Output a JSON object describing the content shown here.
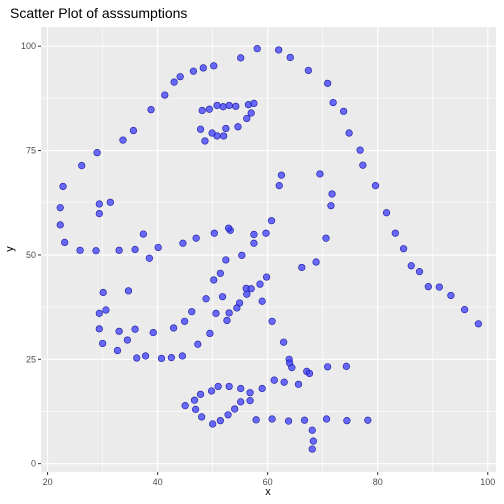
{
  "chart_data": {
    "type": "scatter",
    "title": "Scatter Plot of asssumptions",
    "xlabel": "x",
    "ylabel": "y",
    "xlim": [
      20,
      100
    ],
    "ylim": [
      0,
      100
    ],
    "x_ticks": [
      20,
      40,
      60,
      80,
      100
    ],
    "y_ticks": [
      0,
      25,
      50,
      75,
      100
    ],
    "grid": true,
    "point_color": "#3b3bff",
    "panel_bg": "#ebebeb",
    "points": [
      [
        22.3,
        61.3
      ],
      [
        22.3,
        57.2
      ],
      [
        22.8,
        66.4
      ],
      [
        23.1,
        53.0
      ],
      [
        26.2,
        71.4
      ],
      [
        25.9,
        51.1
      ],
      [
        29.0,
        74.5
      ],
      [
        28.8,
        51.0
      ],
      [
        29.4,
        62.2
      ],
      [
        29.4,
        59.9
      ],
      [
        31.4,
        62.6
      ],
      [
        33.7,
        77.5
      ],
      [
        33.0,
        51.1
      ],
      [
        35.6,
        79.8
      ],
      [
        35.9,
        51.3
      ],
      [
        37.4,
        55.0
      ],
      [
        38.5,
        49.2
      ],
      [
        38.8,
        84.8
      ],
      [
        40.1,
        51.8
      ],
      [
        41.3,
        88.3
      ],
      [
        43.0,
        91.4
      ],
      [
        44.1,
        92.7
      ],
      [
        44.6,
        52.8
      ],
      [
        46.5,
        94.0
      ],
      [
        47.0,
        54.0
      ],
      [
        48.3,
        94.8
      ],
      [
        50.2,
        95.3
      ],
      [
        50.3,
        55.2
      ],
      [
        53.2,
        55.9
      ],
      [
        55.1,
        97.2
      ],
      [
        58.1,
        99.4
      ],
      [
        62.0,
        99.1
      ],
      [
        62.5,
        69.1
      ],
      [
        62.1,
        66.6
      ],
      [
        60.7,
        58.2
      ],
      [
        59.7,
        55.2
      ],
      [
        57.5,
        54.9
      ],
      [
        57.5,
        52.8
      ],
      [
        55.3,
        49.9
      ],
      [
        52.4,
        48.8
      ],
      [
        51.4,
        45.6
      ],
      [
        50.2,
        44.0
      ],
      [
        48.8,
        39.5
      ],
      [
        51.8,
        40.0
      ],
      [
        53.0,
        36.1
      ],
      [
        54.9,
        38.5
      ],
      [
        56.1,
        42.0
      ],
      [
        57.0,
        41.9
      ],
      [
        58.6,
        43.0
      ],
      [
        59.8,
        44.7
      ],
      [
        59.0,
        38.9
      ],
      [
        60.8,
        34.1
      ],
      [
        62.9,
        29.1
      ],
      [
        63.9,
        25.0
      ],
      [
        64.0,
        24.1
      ],
      [
        64.4,
        23.0
      ],
      [
        66.2,
        47.0
      ],
      [
        68.8,
        48.3
      ],
      [
        65.6,
        19.0
      ],
      [
        63.0,
        19.5
      ],
      [
        61.2,
        20.0
      ],
      [
        59.0,
        18.0
      ],
      [
        56.8,
        17.0
      ],
      [
        55.1,
        18.0
      ],
      [
        53.0,
        18.5
      ],
      [
        51.0,
        18.5
      ],
      [
        49.8,
        17.4
      ],
      [
        47.8,
        16.6
      ],
      [
        46.7,
        15.2
      ],
      [
        45.0,
        13.9
      ],
      [
        46.9,
        13.0
      ],
      [
        48.0,
        11.2
      ],
      [
        50.0,
        9.5
      ],
      [
        51.4,
        10.3
      ],
      [
        52.8,
        11.7
      ],
      [
        54.0,
        13.1
      ],
      [
        55.1,
        14.8
      ],
      [
        56.8,
        15.1
      ],
      [
        57.9,
        10.5
      ],
      [
        60.8,
        10.7
      ],
      [
        63.8,
        10.2
      ],
      [
        66.7,
        10.4
      ],
      [
        68.1,
        8.0
      ],
      [
        68.3,
        5.4
      ],
      [
        68.1,
        3.5
      ],
      [
        74.4,
        10.3
      ],
      [
        78.2,
        10.4
      ],
      [
        70.7,
        10.7
      ],
      [
        67.1,
        22.1
      ],
      [
        67.6,
        21.6
      ],
      [
        70.9,
        23.2
      ],
      [
        74.3,
        23.3
      ],
      [
        70.6,
        54.0
      ],
      [
        71.5,
        61.8
      ],
      [
        71.7,
        64.6
      ],
      [
        69.5,
        69.4
      ],
      [
        71.9,
        86.5
      ],
      [
        70.9,
        91.1
      ],
      [
        67.4,
        94.2
      ],
      [
        64.1,
        97.3
      ],
      [
        73.8,
        84.4
      ],
      [
        74.8,
        79.2
      ],
      [
        76.8,
        75.1
      ],
      [
        77.3,
        71.5
      ],
      [
        79.6,
        66.6
      ],
      [
        81.6,
        60.1
      ],
      [
        83.2,
        55.2
      ],
      [
        84.7,
        51.5
      ],
      [
        86.1,
        47.4
      ],
      [
        87.6,
        46.0
      ],
      [
        89.2,
        42.4
      ],
      [
        91.2,
        42.3
      ],
      [
        93.3,
        40.3
      ],
      [
        95.8,
        36.9
      ],
      [
        98.3,
        33.5
      ],
      [
        51.9,
        85.5
      ],
      [
        52.0,
        78.5
      ],
      [
        52.4,
        80.3
      ],
      [
        53.0,
        85.8
      ],
      [
        52.9,
        56.4
      ],
      [
        50.8,
        85.8
      ],
      [
        47.8,
        80.1
      ],
      [
        50.8,
        78.5
      ],
      [
        49.9,
        79.2
      ],
      [
        48.1,
        84.6
      ],
      [
        49.4,
        84.9
      ],
      [
        48.6,
        77.3
      ],
      [
        54.2,
        85.6
      ],
      [
        54.6,
        80.7
      ],
      [
        56.5,
        86.0
      ],
      [
        57.5,
        86.3
      ],
      [
        56.2,
        82.7
      ],
      [
        57.0,
        84.0
      ],
      [
        29.4,
        32.3
      ],
      [
        29.4,
        36.0
      ],
      [
        30.6,
        36.8
      ],
      [
        30.0,
        28.8
      ],
      [
        32.7,
        27.1
      ],
      [
        33.0,
        31.7
      ],
      [
        34.5,
        29.6
      ],
      [
        35.9,
        32.2
      ],
      [
        36.2,
        25.3
      ],
      [
        37.8,
        25.8
      ],
      [
        39.2,
        31.4
      ],
      [
        40.7,
        25.2
      ],
      [
        42.5,
        25.4
      ],
      [
        42.9,
        32.5
      ],
      [
        44.5,
        25.8
      ],
      [
        44.9,
        34.1
      ],
      [
        46.2,
        36.4
      ],
      [
        47.3,
        28.6
      ],
      [
        49.5,
        31.2
      ],
      [
        50.6,
        36.0
      ],
      [
        52.6,
        34.3
      ],
      [
        54.4,
        37.3
      ],
      [
        56.2,
        40.6
      ],
      [
        34.7,
        41.4
      ],
      [
        30.1,
        41.0
      ]
    ]
  }
}
